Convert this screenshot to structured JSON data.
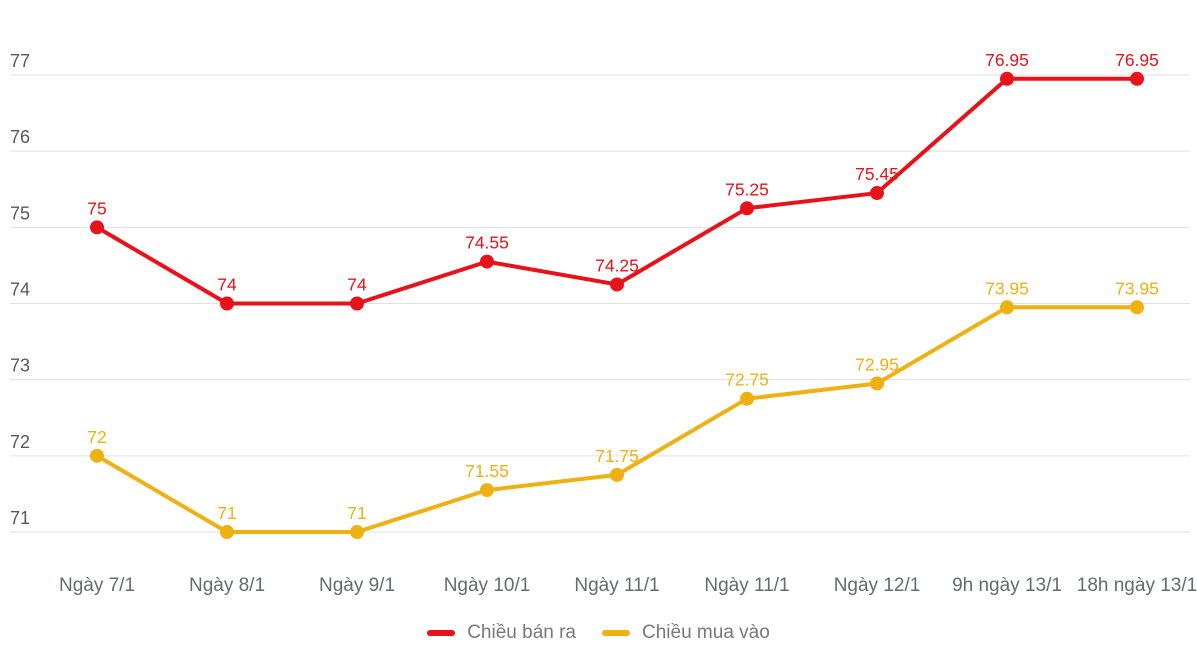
{
  "chart_data": {
    "type": "line",
    "categories": [
      "Ngày 7/1",
      "Ngày 8/1",
      "Ngày 9/1",
      "Ngày 10/1",
      "Ngày 11/1",
      "Ngày 11/1",
      "Ngày 12/1",
      "9h ngày 13/1",
      "18h ngày 13/1"
    ],
    "series": [
      {
        "name": "Chiều bán ra",
        "color": "#e8121a",
        "values": [
          75,
          74,
          74,
          74.55,
          74.25,
          75.25,
          75.45,
          76.95,
          76.95
        ]
      },
      {
        "name": "Chiều mua vào",
        "color": "#efb012",
        "values": [
          72,
          71,
          71,
          71.55,
          71.75,
          72.75,
          72.95,
          73.95,
          73.95
        ]
      }
    ],
    "yticks": [
      71,
      72,
      73,
      74,
      75,
      76,
      77
    ],
    "ylim": [
      70.4,
      77.9
    ],
    "xlabel": "",
    "ylabel": "",
    "title": "",
    "grid": true,
    "legend_position": "bottom",
    "point_labels_visible": true,
    "colors": {
      "background": "#ffffff",
      "grid": "#e1e1e1",
      "y_tick_label": "#58595b",
      "x_tick_label": "#666b70",
      "legend_label": "#77787c"
    }
  }
}
